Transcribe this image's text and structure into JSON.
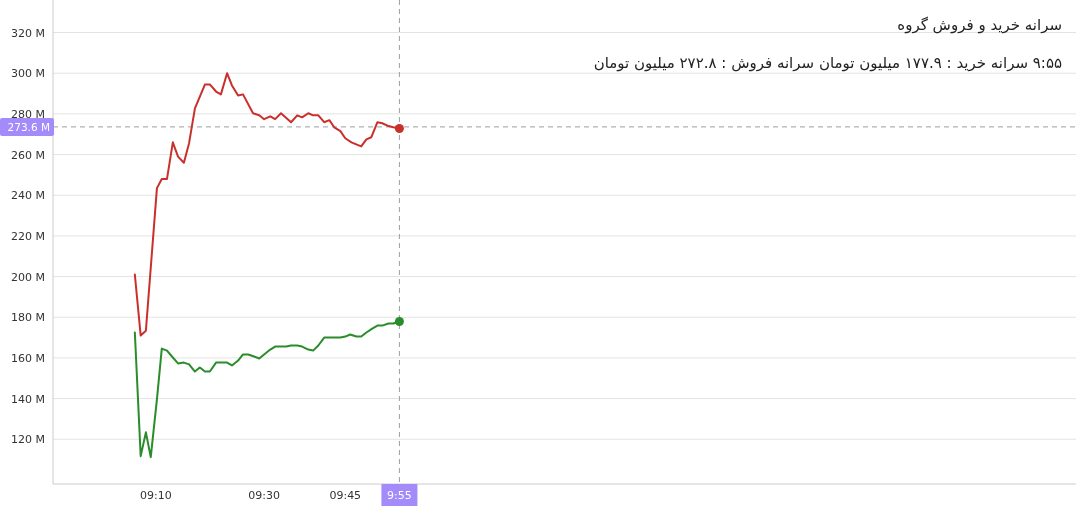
{
  "chart_data": {
    "type": "line",
    "title": "سرانه خرید و فروش گروه",
    "subtitle": "۹:۵۵ سرانه خرید : ۱۷۷.۹ میلیون تومان سرانه فروش : ۲۷۲.۸ میلیون تومان",
    "xlim": [
      8.85,
      12
    ],
    "ylim": [
      98,
      336
    ],
    "xticks": [
      {
        "value": 9.166667,
        "label": "09:10"
      },
      {
        "value": 9.5,
        "label": "09:30"
      },
      {
        "value": 9.75,
        "label": "09:45"
      }
    ],
    "yticks": [
      {
        "value": 120,
        "label": "120 M"
      },
      {
        "value": 140,
        "label": "140 M"
      },
      {
        "value": 160,
        "label": "160 M"
      },
      {
        "value": 180,
        "label": "180 M"
      },
      {
        "value": 200,
        "label": "200 M"
      },
      {
        "value": 220,
        "label": "220 M"
      },
      {
        "value": 240,
        "label": "240 M"
      },
      {
        "value": 260,
        "label": "260 M"
      },
      {
        "value": 280,
        "label": "280 M"
      },
      {
        "value": 300,
        "label": "300 M"
      },
      {
        "value": 320,
        "label": "320 M"
      }
    ],
    "annotations": [
      "9:55"
    ],
    "grid": "y",
    "marker": "none",
    "line_style": "solid",
    "ref_lines": [
      {
        "axis": "y",
        "value": 273.6,
        "label": "273.6 M",
        "color": "#9aa0a6",
        "line_style": "dashed"
      },
      {
        "axis": "x",
        "value": 9.916667,
        "color": "#9aa0a6",
        "line_style": "dashed"
      }
    ],
    "series": [
      {
        "color": "#c9302c",
        "x": [
          9.102,
          9.12,
          9.136,
          9.17,
          9.185,
          9.201,
          9.219,
          9.235,
          9.253,
          9.269,
          9.287,
          9.318,
          9.333,
          9.352,
          9.367,
          9.386,
          9.401,
          9.42,
          9.435,
          9.466,
          9.485,
          9.5,
          9.519,
          9.534,
          9.552,
          9.583,
          9.602,
          9.617,
          9.636,
          9.651,
          9.667,
          9.685,
          9.701,
          9.716,
          9.735,
          9.75,
          9.769,
          9.799,
          9.815,
          9.83,
          9.849,
          9.864,
          9.883,
          9.898,
          9.917
        ],
        "values": [
          201,
          171,
          173.4,
          243.5,
          248,
          248,
          266,
          259,
          256,
          265.6,
          282.7,
          294.5,
          294.5,
          291,
          289.6,
          300,
          294,
          289,
          289.6,
          280.3,
          279.3,
          277.4,
          278.8,
          277.4,
          280.3,
          275.9,
          279.3,
          278.3,
          280.3,
          279.3,
          279.3,
          275.9,
          276.9,
          273.4,
          271.5,
          268,
          266,
          264,
          267.5,
          268.5,
          275.9,
          275.4,
          274,
          273.4,
          272.8
        ]
      },
      {
        "color": "#2a8c2a",
        "x": [
          9.102,
          9.12,
          9.136,
          9.151,
          9.17,
          9.185,
          9.201,
          9.219,
          9.235,
          9.253,
          9.269,
          9.287,
          9.302,
          9.318,
          9.333,
          9.352,
          9.367,
          9.386,
          9.401,
          9.42,
          9.435,
          9.451,
          9.469,
          9.485,
          9.5,
          9.519,
          9.534,
          9.552,
          9.568,
          9.583,
          9.602,
          9.617,
          9.636,
          9.651,
          9.667,
          9.685,
          9.701,
          9.735,
          9.75,
          9.765,
          9.784,
          9.799,
          9.815,
          9.833,
          9.849,
          9.864,
          9.883,
          9.898,
          9.917
        ],
        "values": [
          172.5,
          111.7,
          123.4,
          111.2,
          139.6,
          164.6,
          163.6,
          160.2,
          157.3,
          157.7,
          156.8,
          153.3,
          155.3,
          153.3,
          153.3,
          157.7,
          157.7,
          157.7,
          156.3,
          158.7,
          161.7,
          161.7,
          160.7,
          159.7,
          161.7,
          164.1,
          165.6,
          165.6,
          165.6,
          166.1,
          166.1,
          165.6,
          164.1,
          163.6,
          166.1,
          170,
          170,
          170,
          170.5,
          171.5,
          170.5,
          170.5,
          172.5,
          174.4,
          175.9,
          175.9,
          176.9,
          176.9,
          177.9
        ]
      },
      {
        "type": "scatter",
        "marker": "circle",
        "color": "#c9302c",
        "x": [
          9.916667
        ],
        "values": [
          272.8
        ]
      },
      {
        "type": "scatter",
        "marker": "circle",
        "color": "#2a8c2a",
        "x": [
          9.916667
        ],
        "values": [
          177.9
        ]
      }
    ]
  }
}
